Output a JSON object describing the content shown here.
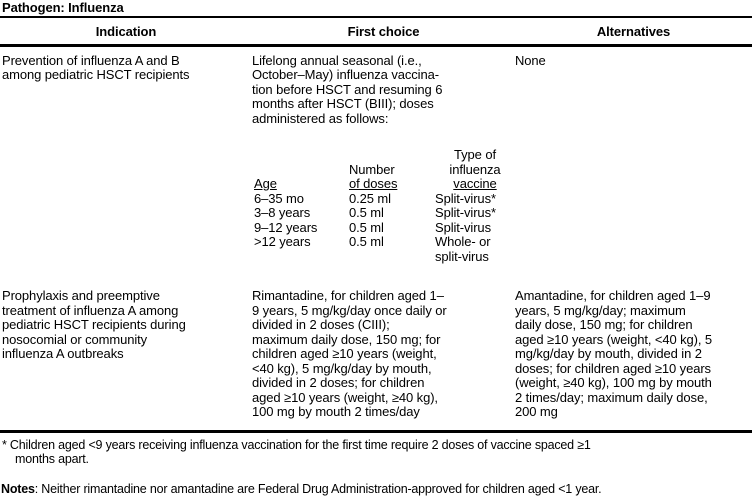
{
  "pathogen_header": "Pathogen: Influenza",
  "table": {
    "columns": [
      "Indication",
      "First choice",
      "Alternatives"
    ],
    "rows": [
      {
        "indication": "Prevention of influenza A and B\namong pediatric HSCT recipients",
        "first_choice": "Lifelong annual seasonal (i.e.,\nOctober–May) influenza vaccina-\ntion before HSCT and resuming  6\nmonths after HSCT (BIII); doses\nadministered as follows:",
        "alternatives": "None"
      },
      {
        "indication": "Prophylaxis and preemptive\ntreatment of influenza A among\npediatric HSCT recipients during\nnosocomial or community\ninfluenza A outbreaks",
        "first_choice": "Rimantadine, for children aged 1–\n9 years, 5 mg/kg/day once daily or\ndivided in 2 doses (CIII);\nmaximum daily dose, 150 mg; for\nchildren aged ≥10 years (weight,\n<40 kg), 5 mg/kg/day by mouth,\ndivided in 2 doses; for children\naged ≥10 years (weight, ≥40 kg),\n100 mg by mouth 2 times/day",
        "alternatives": "Amantadine, for children aged 1–9\nyears, 5 mg/kg/day; maximum\ndaily dose, 150 mg; for children\naged ≥10 years (weight, <40 kg), 5\nmg/kg/day by mouth, divided in 2\ndoses; for children aged ≥10 years\n(weight, ≥40 kg), 100 mg by mouth\n2 times/day; maximum daily dose,\n200 mg"
      }
    ],
    "dose_table": {
      "age_header": "Age",
      "doses_header_top": "Number",
      "doses_header_bottom": "of doses",
      "type_header_top": "Type of\ninfluenza",
      "type_header_bottom": "vaccine",
      "rows": [
        {
          "age": "6–35 mo",
          "doses": "0.25 ml",
          "type": "Split-virus*"
        },
        {
          "age": "3–8 years",
          "doses": "0.5 ml",
          "type": "Split-virus*"
        },
        {
          "age": "9–12 years",
          "doses": "0.5 ml",
          "type": "Split-virus"
        },
        {
          "age": ">12 years",
          "doses": "0.5 ml",
          "type": "Whole- or\nsplit-virus"
        }
      ]
    }
  },
  "footnotes": {
    "star": "*  Children aged <9 years receiving influenza vaccination for the first time require 2 doses of vaccine spaced ≥1\nmonths apart.",
    "notes_label": "Notes",
    "notes_text": ": Neither rimantadine nor amantadine are Federal Drug Administration-approved for children aged <1 year.\nRimantadine and amantadine doses should be reduced for patients with impaired renal function."
  }
}
